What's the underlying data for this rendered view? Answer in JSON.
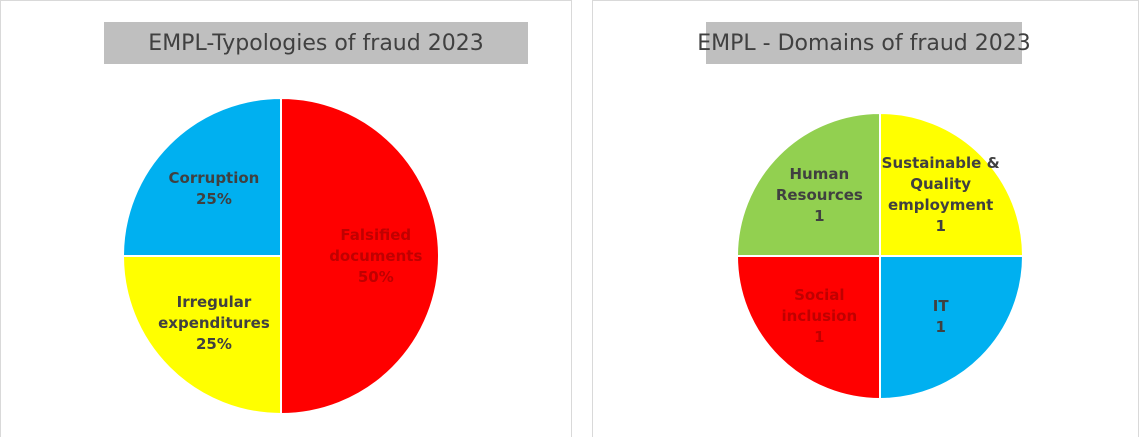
{
  "chart_data": [
    {
      "type": "pie",
      "title": "EMPL-Typologies of fraud 2023",
      "categories": [
        "Falsified documents",
        "Irregular expenditures",
        "Corruption"
      ],
      "values": [
        50,
        25,
        25
      ],
      "value_labels": [
        "50%",
        "25%",
        "25%"
      ],
      "colors": [
        "#ff0000",
        "#ffff00",
        "#00b0f0"
      ]
    },
    {
      "type": "pie",
      "title": "EMPL - Domains of fraud 2023",
      "categories": [
        "Sustainable & Quality employment",
        "IT",
        "Social inclusion",
        "Human Resources"
      ],
      "values": [
        1,
        1,
        1,
        1
      ],
      "colors": [
        "#ffff00",
        "#00b0f0",
        "#ff0000",
        "#92d050"
      ]
    }
  ]
}
